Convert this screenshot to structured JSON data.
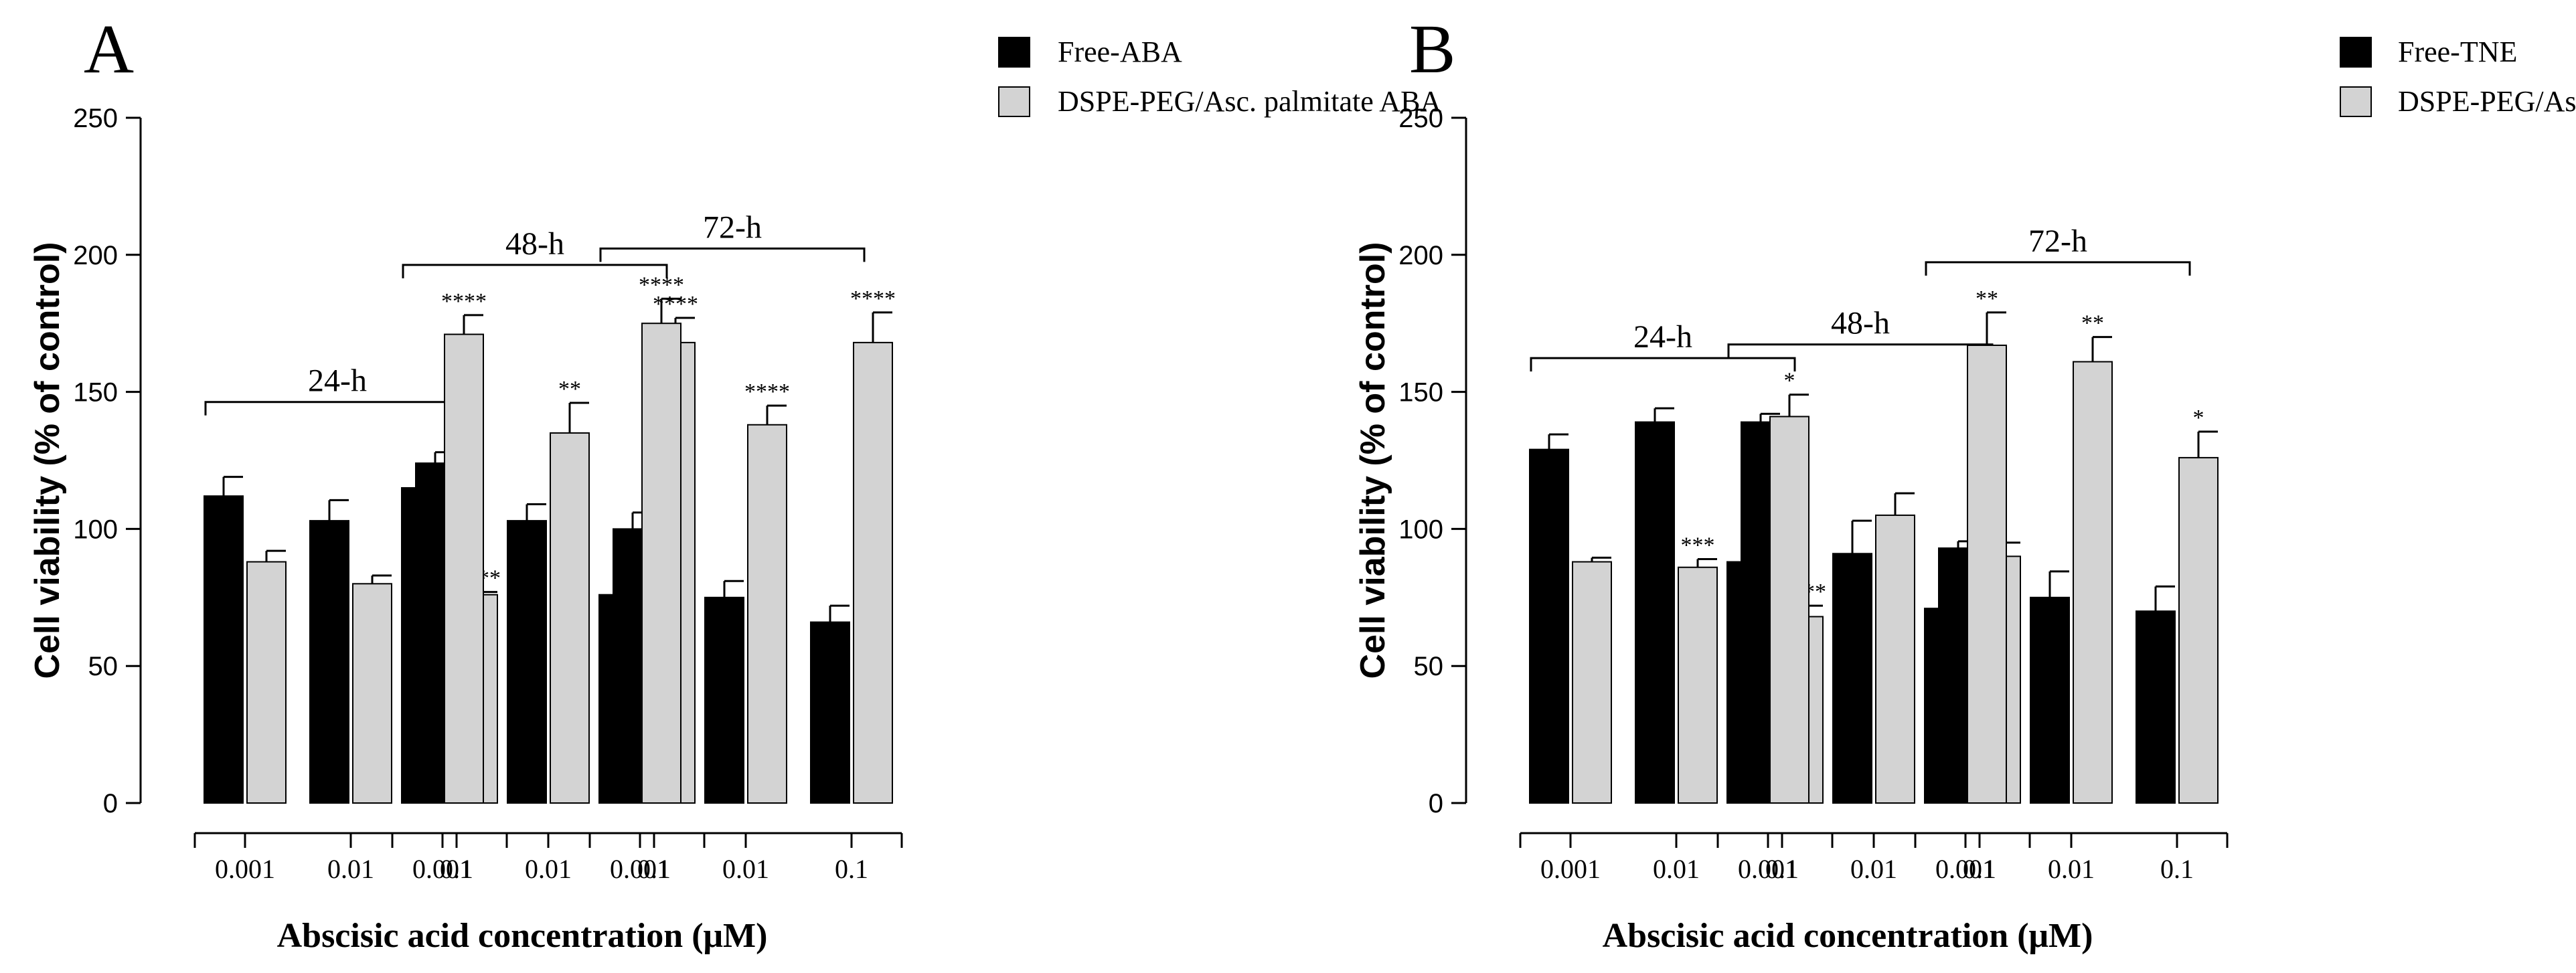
{
  "chart_data": [
    {
      "type": "bar",
      "panel_label": "A",
      "xlabel": "Abscisic acid concentration  (μM)",
      "ylabel": "Cell viability (% of control)",
      "ylim": [
        0,
        250
      ],
      "yticks": [
        "0",
        "50",
        "100",
        "150",
        "200",
        "250"
      ],
      "ytick_values": [
        0,
        50,
        100,
        150,
        200,
        250
      ],
      "legend_placement": "top-right",
      "series": [
        {
          "name": "Free-ABA",
          "color": "#000000"
        },
        {
          "name": "DSPE-PEG/Asc. palmitate ABA",
          "color": "#d3d3d3"
        }
      ],
      "groups": [
        {
          "label": "24-h",
          "categories": [
            "0.001",
            "0.01",
            "0.1"
          ],
          "values": [
            [
              112,
              103,
              124
            ],
            [
              88,
              80,
              76
            ]
          ],
          "errors": [
            [
              7,
              7.5,
              4
            ],
            [
              4,
              3,
              1
            ]
          ],
          "significance": [
            [
              "",
              "",
              ""
            ],
            [
              "",
              "",
              "****"
            ]
          ]
        },
        {
          "label": "48-h",
          "categories": [
            "0.001",
            "0.01",
            "0.1"
          ],
          "values": [
            [
              115,
              103,
              100
            ],
            [
              171,
              135,
              168
            ]
          ],
          "errors": [
            [
              5.5,
              6,
              6
            ],
            [
              7,
              11,
              9
            ]
          ],
          "significance": [
            [
              "",
              "",
              ""
            ],
            [
              "****",
              "**",
              "****"
            ]
          ]
        },
        {
          "label": "72-h",
          "categories": [
            "0.001",
            "0.01",
            "0.1"
          ],
          "values": [
            [
              76,
              75,
              66
            ],
            [
              175,
              138,
              168
            ]
          ],
          "errors": [
            [
              5,
              6,
              6
            ],
            [
              9,
              7,
              11
            ]
          ],
          "significance": [
            [
              "",
              "",
              ""
            ],
            [
              "****",
              "****",
              "****"
            ]
          ]
        }
      ]
    },
    {
      "type": "bar",
      "panel_label": "B",
      "xlabel": "Abscisic acid concentration  (μM)",
      "ylabel": "Cell viability (% of control)",
      "ylim": [
        0,
        250
      ],
      "yticks": [
        "0",
        "50",
        "100",
        "150",
        "200",
        "250"
      ],
      "ytick_values": [
        0,
        50,
        100,
        150,
        200,
        250
      ],
      "legend_placement": "top-right",
      "series": [
        {
          "name": "Free-TNE",
          "color": "#000000"
        },
        {
          "name": "DSPE-PEG/Asc. palmitate TNE",
          "color": "#d3d3d3"
        }
      ],
      "groups": [
        {
          "label": "24-h",
          "categories": [
            "0.001",
            "0.01",
            "0.1"
          ],
          "values": [
            [
              129,
              139,
              139
            ],
            [
              88,
              86,
              68
            ]
          ],
          "errors": [
            [
              5.5,
              5,
              3
            ],
            [
              1.5,
              3,
              4
            ]
          ],
          "significance": [
            [
              "",
              "",
              ""
            ],
            [
              "",
              "***",
              "****"
            ]
          ]
        },
        {
          "label": "48-h",
          "categories": [
            "0.001",
            "0.01",
            "0.1"
          ],
          "values": [
            [
              88,
              91,
              93
            ],
            [
              141,
              105,
              90
            ]
          ],
          "errors": [
            [
              3,
              12,
              2.5
            ],
            [
              8,
              8,
              5
            ]
          ],
          "significance": [
            [
              "",
              "",
              ""
            ],
            [
              "*",
              "",
              ""
            ]
          ]
        },
        {
          "label": "72-h",
          "categories": [
            "0.001",
            "0.01",
            "0.1"
          ],
          "values": [
            [
              71,
              75,
              70
            ],
            [
              167,
              161,
              126
            ]
          ],
          "errors": [
            [
              7,
              9.5,
              9
            ],
            [
              12,
              9,
              9.5
            ]
          ],
          "significance": [
            [
              "",
              "",
              ""
            ],
            [
              "**",
              "**",
              "*"
            ]
          ]
        }
      ]
    }
  ]
}
